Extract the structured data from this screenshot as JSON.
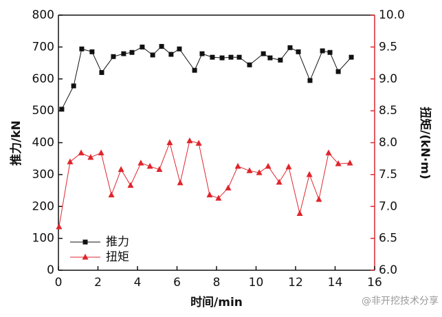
{
  "chart_data": {
    "type": "line",
    "xlabel": "时间/min",
    "ylabel": "推力/kN",
    "y2label": "扭矩/(kN·m)",
    "xlim": [
      0,
      16
    ],
    "xticks": [
      0,
      2,
      4,
      6,
      8,
      10,
      12,
      14,
      16
    ],
    "ylim": [
      0,
      800
    ],
    "yticks": [
      0,
      100,
      200,
      300,
      400,
      500,
      600,
      700,
      800
    ],
    "y2lim": [
      6,
      10
    ],
    "y2ticks": [
      {
        "value": 6,
        "label": "6.0"
      },
      {
        "value": 6.5,
        "label": "6.5"
      },
      {
        "value": 7,
        "label": "7.0"
      },
      {
        "value": 7.5,
        "label": "7.5"
      },
      {
        "value": 8,
        "label": "8.0"
      },
      {
        "value": 8.5,
        "label": "8.5"
      },
      {
        "value": 9,
        "label": "9.0"
      },
      {
        "value": 9.5,
        "label": "9.5"
      },
      {
        "value": 10,
        "label": "10.0"
      }
    ],
    "y2color": "#e0252c",
    "legend": "lower left",
    "series": [
      {
        "name": "推力",
        "color": "#111111",
        "marker": "square",
        "x": [
          0.17,
          0.77,
          1.18,
          1.7,
          2.19,
          2.78,
          3.3,
          3.72,
          4.24,
          4.77,
          5.22,
          5.7,
          6.12,
          6.89,
          7.27,
          7.79,
          8.28,
          8.73,
          9.15,
          9.67,
          10.37,
          10.71,
          11.23,
          11.72,
          12.14,
          12.73,
          13.36,
          13.74,
          14.16,
          14.82
        ],
        "values": [
          505,
          578,
          694,
          685,
          620,
          670,
          679,
          683,
          700,
          675,
          702,
          677,
          694,
          627,
          679,
          668,
          666,
          668,
          668,
          644,
          679,
          666,
          659,
          698,
          685,
          595,
          688,
          683,
          623,
          668
        ]
      },
      {
        "name": "扭矩",
        "color": "#e0252c",
        "marker": "triangle",
        "axis": "y2",
        "x": [
          0.03,
          0.59,
          1.15,
          1.63,
          2.16,
          2.68,
          3.17,
          3.65,
          4.17,
          4.63,
          5.11,
          5.63,
          6.16,
          6.64,
          7.1,
          7.65,
          8.1,
          8.59,
          9.08,
          9.67,
          10.16,
          10.61,
          11.17,
          11.65,
          12.21,
          12.7,
          13.18,
          13.67,
          14.16,
          14.75
        ],
        "values": [
          6.68,
          7.7,
          7.84,
          7.77,
          7.84,
          7.18,
          7.58,
          7.33,
          7.68,
          7.63,
          7.58,
          8.0,
          7.37,
          8.03,
          7.99,
          7.18,
          7.13,
          7.29,
          7.63,
          7.56,
          7.53,
          7.63,
          7.38,
          7.62,
          6.89,
          7.5,
          7.11,
          7.84,
          7.67,
          7.68
        ]
      }
    ]
  },
  "watermark": "@非开挖技术分享"
}
